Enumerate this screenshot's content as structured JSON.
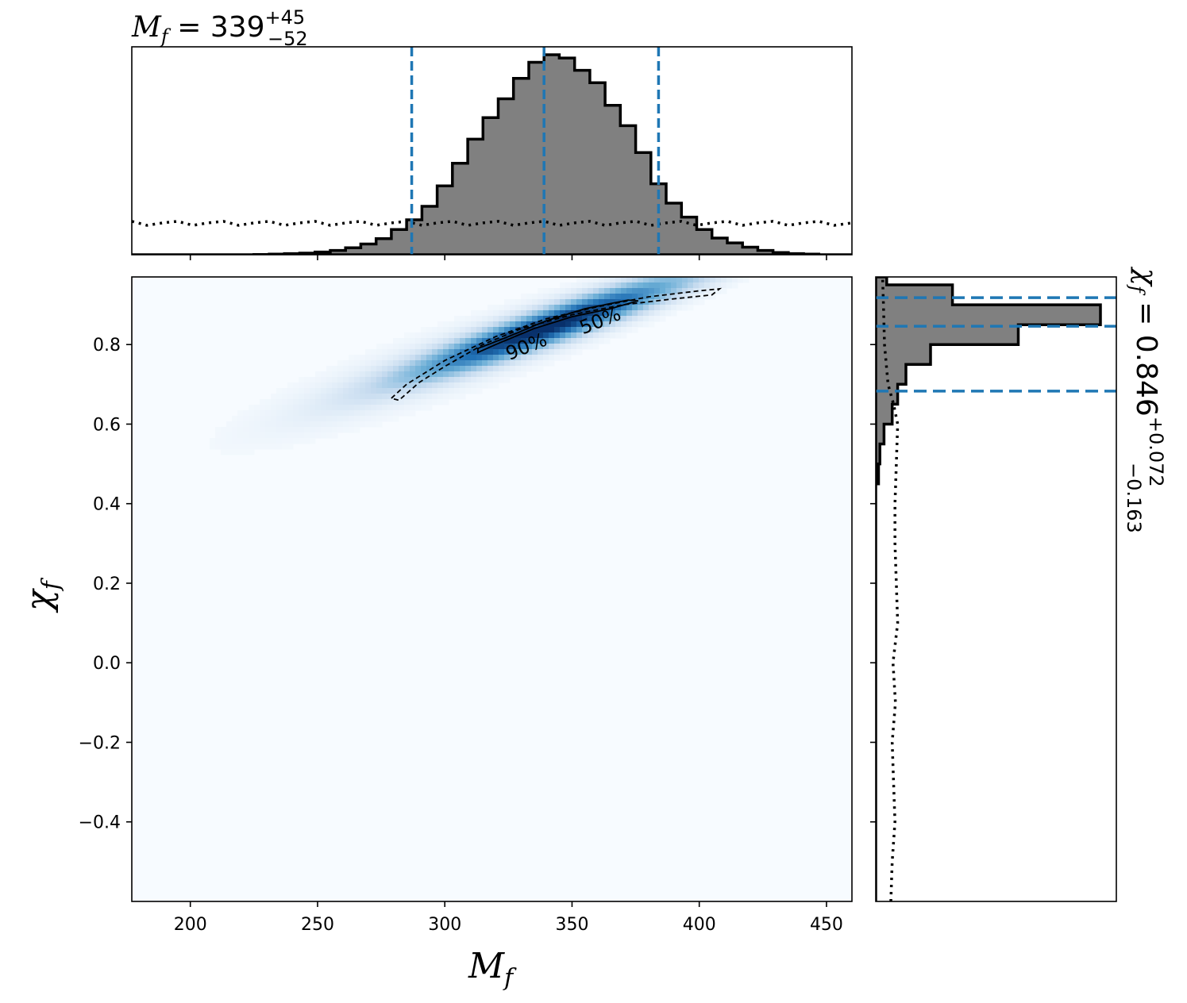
{
  "chart_data": {
    "type": "corner_plot",
    "main": {
      "type": "heatmap",
      "xlabel": "M",
      "xlabel_sub": "f",
      "ylabel": "χ",
      "ylabel_sub": "f",
      "xlim": [
        177,
        460
      ],
      "ylim": [
        -0.6,
        0.97
      ],
      "xticks": [
        200,
        250,
        300,
        350,
        400,
        450
      ],
      "xtick_labels": [
        "200",
        "250",
        "300",
        "350",
        "400",
        "450"
      ],
      "yticks": [
        -0.4,
        -0.2,
        0.0,
        0.2,
        0.4,
        0.6,
        0.8
      ],
      "ytick_labels": [
        "−0.4",
        "−0.2",
        "0.0",
        "0.2",
        "0.4",
        "0.6",
        "0.8"
      ],
      "colormap": "Blues",
      "density_center": {
        "x": 341,
        "y": 0.845
      },
      "contours": [
        {
          "label": "50%",
          "style": "solid",
          "points": [
            [
              313,
              0.78
            ],
            [
              320,
              0.8
            ],
            [
              335,
              0.84
            ],
            [
              350,
              0.87
            ],
            [
              365,
              0.89
            ],
            [
              376,
              0.91
            ],
            [
              372,
              0.912
            ],
            [
              355,
              0.89
            ],
            [
              340,
              0.86
            ],
            [
              325,
              0.82
            ],
            [
              313,
              0.79
            ]
          ]
        },
        {
          "label": "90%",
          "style": "dashed",
          "points": [
            [
              279,
              0.665
            ],
            [
              285,
              0.7
            ],
            [
              300,
              0.76
            ],
            [
              320,
              0.82
            ],
            [
              340,
              0.865
            ],
            [
              360,
              0.895
            ],
            [
              380,
              0.92
            ],
            [
              400,
              0.935
            ],
            [
              408,
              0.94
            ],
            [
              405,
              0.925
            ],
            [
              390,
              0.915
            ],
            [
              370,
              0.9
            ],
            [
              350,
              0.875
            ],
            [
              330,
              0.84
            ],
            [
              315,
              0.8
            ],
            [
              300,
              0.745
            ],
            [
              290,
              0.705
            ],
            [
              282,
              0.66
            ]
          ]
        }
      ],
      "contour_labels": [
        {
          "text": "90%",
          "x": 333,
          "y": 0.78,
          "rotation": -22
        },
        {
          "text": "50%",
          "x": 362,
          "y": 0.845,
          "rotation": -22
        }
      ]
    },
    "top_marginal": {
      "type": "step_histogram",
      "title_main": "M",
      "title_sub": "f",
      "title_value": " = 339",
      "title_plus": "+45",
      "title_minus": "−52",
      "xlim": [
        177,
        460
      ],
      "bin_edges": [
        177,
        183,
        189,
        195,
        201,
        207,
        213,
        219,
        225,
        231,
        237,
        243,
        249,
        255,
        261,
        267,
        273,
        279,
        285,
        291,
        297,
        303,
        309,
        315,
        321,
        327,
        333,
        339,
        345,
        351,
        357,
        363,
        369,
        375,
        381,
        387,
        393,
        399,
        405,
        411,
        417,
        423,
        429,
        435,
        441,
        447,
        453,
        460
      ],
      "counts": [
        0,
        0,
        0,
        0,
        0,
        0,
        0,
        0,
        0.5,
        1,
        2,
        3,
        5,
        8,
        13,
        20,
        30,
        47,
        65,
        90,
        128,
        170,
        215,
        255,
        290,
        328,
        358,
        372,
        366,
        343,
        320,
        278,
        240,
        190,
        132,
        96,
        70,
        47,
        31,
        22,
        14,
        8,
        4,
        2,
        1,
        0,
        0
      ],
      "prior_level": 0.155,
      "quantiles": [
        287,
        339,
        384
      ],
      "fill_color": "#808080",
      "quantile_color": "#1f77b4"
    },
    "right_marginal": {
      "type": "step_histogram",
      "title_main": "χ",
      "title_sub": "f",
      "title_value": " = 0.846",
      "title_plus": "+0.072",
      "title_minus": "−0.163",
      "ylim": [
        -0.6,
        0.97
      ],
      "bin_edges": [
        -0.6,
        -0.55,
        -0.5,
        -0.45,
        -0.4,
        -0.35,
        -0.3,
        -0.25,
        -0.2,
        -0.15,
        -0.1,
        -0.05,
        0.0,
        0.05,
        0.1,
        0.15,
        0.2,
        0.25,
        0.3,
        0.35,
        0.4,
        0.45,
        0.5,
        0.55,
        0.6,
        0.65,
        0.7,
        0.75,
        0.8,
        0.85,
        0.9,
        0.95,
        0.97
      ],
      "counts": [
        0,
        0,
        0,
        0,
        0,
        0,
        0,
        0,
        0,
        0,
        0,
        0,
        0,
        0,
        0,
        0,
        0,
        0,
        0,
        0,
        0,
        0.01,
        0.015,
        0.03,
        0.06,
        0.08,
        0.11,
        0.2,
        0.52,
        0.82,
        0.28,
        0.04
      ],
      "prior_curve": [
        [
          -0.6,
          0.055
        ],
        [
          -0.5,
          0.06
        ],
        [
          -0.4,
          0.07
        ],
        [
          -0.3,
          0.065
        ],
        [
          -0.2,
          0.06
        ],
        [
          -0.1,
          0.072
        ],
        [
          0.0,
          0.063
        ],
        [
          0.1,
          0.08
        ],
        [
          0.2,
          0.075
        ],
        [
          0.3,
          0.07
        ],
        [
          0.4,
          0.07
        ],
        [
          0.5,
          0.075
        ],
        [
          0.6,
          0.08
        ],
        [
          0.65,
          0.065
        ],
        [
          0.7,
          0.045
        ],
        [
          0.8,
          0.032
        ],
        [
          0.9,
          0.028
        ],
        [
          0.97,
          0.025
        ]
      ],
      "quantiles": [
        0.683,
        0.846,
        0.918
      ],
      "fill_color": "#808080",
      "quantile_color": "#1f77b4"
    }
  }
}
